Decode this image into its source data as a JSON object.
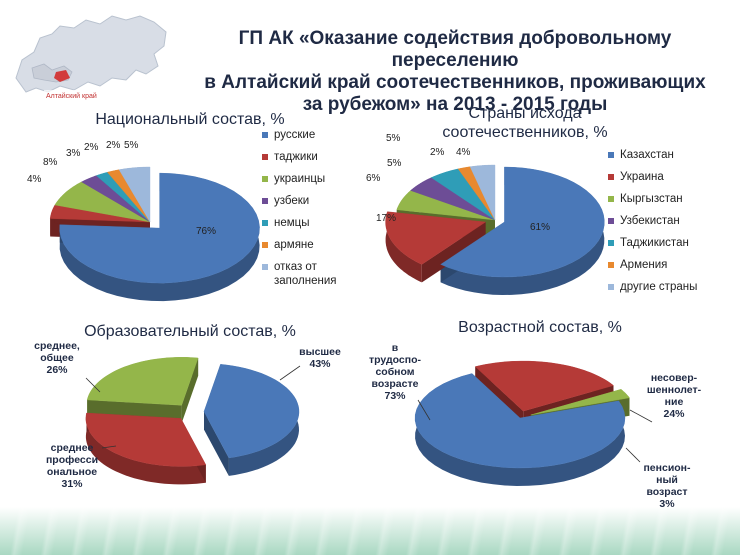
{
  "header": {
    "title": "ГП АК «Оказание содействия добровольному переселению\nв Алтайский край соотечественников, проживающих\nза рубежом» на 2013 - 2015 годы",
    "map_label": "Алтайский край"
  },
  "colors": {
    "blue": "#4a78b8",
    "red": "#b53a37",
    "green": "#94b64a",
    "purple": "#6d4d96",
    "teal": "#2f9db7",
    "orange": "#e8892f",
    "lightblue": "#9db8db"
  },
  "chart_data": [
    {
      "type": "pie",
      "title": "Национальный состав, %",
      "categories": [
        "русские",
        "таджики",
        "украинцы",
        "узбеки",
        "немцы",
        "армяне",
        "отказ от заполнения"
      ],
      "values": [
        76,
        4,
        8,
        3,
        2,
        2,
        5
      ],
      "value_labels": [
        "76%",
        "4%",
        "8%",
        "3%",
        "2%",
        "2%",
        "5%"
      ],
      "legend": "right"
    },
    {
      "type": "pie",
      "title": "Страны исхода\nсоотечественников, %",
      "categories": [
        "Казахстан",
        "Украина",
        "Кыргызстан",
        "Узбекистан",
        "Таджикистан",
        "Армения",
        "другие страны"
      ],
      "values": [
        61,
        17,
        6,
        5,
        5,
        2,
        4
      ],
      "value_labels": [
        "61%",
        "17%",
        "6%",
        "5%",
        "5%",
        "2%",
        "4%"
      ],
      "legend": "right"
    },
    {
      "type": "pie",
      "title": "Образовательный состав, %",
      "categories": [
        "высшее",
        "среднее профессиональное",
        "среднее, общее"
      ],
      "values": [
        43,
        31,
        26
      ],
      "data_labels": [
        "высшее\n43%",
        "среднее\nпрофесси\nональное\n31%",
        "среднее,\nобщее\n26%"
      ]
    },
    {
      "type": "pie",
      "title": "Возрастной состав, %",
      "categories": [
        "в трудоспособном возрасте",
        "несовершеннолетние",
        "пенсионный возраст"
      ],
      "values": [
        73,
        24,
        3
      ],
      "data_labels": [
        "в\nтрудоспо-\nсобном\nвозрасте\n73%",
        "несовер-\nшеннолет-\nние\n24%",
        "пенсион-\nный\nвозраст\n3%"
      ]
    }
  ]
}
